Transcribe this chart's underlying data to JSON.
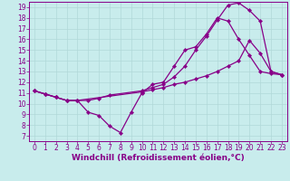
{
  "background_color": "#c8ecec",
  "grid_color": "#b0d8d8",
  "line_color": "#880088",
  "marker": "D",
  "marker_size": 2.2,
  "line_width": 0.9,
  "xlabel": "Windchill (Refroidissement éolien,°C)",
  "xlabel_fontsize": 6.5,
  "tick_fontsize": 5.5,
  "xlim": [
    -0.5,
    23.5
  ],
  "ylim": [
    6.5,
    19.5
  ],
  "yticks": [
    7,
    8,
    9,
    10,
    11,
    12,
    13,
    14,
    15,
    16,
    17,
    18,
    19
  ],
  "xticks": [
    0,
    1,
    2,
    3,
    4,
    5,
    6,
    7,
    8,
    9,
    10,
    11,
    12,
    13,
    14,
    15,
    16,
    17,
    18,
    19,
    20,
    21,
    22,
    23
  ],
  "series": [
    {
      "x": [
        0,
        1,
        2,
        3,
        4,
        5,
        6,
        7,
        8,
        9,
        10,
        11,
        12,
        13,
        14,
        15,
        16,
        17,
        18,
        19,
        20,
        21,
        22,
        23
      ],
      "y": [
        11.2,
        10.9,
        10.6,
        10.3,
        10.3,
        9.2,
        8.9,
        7.9,
        7.3,
        9.2,
        11.0,
        11.8,
        12.0,
        13.5,
        15.0,
        15.3,
        16.5,
        18.0,
        17.7,
        16.0,
        14.5,
        13.0,
        12.8,
        12.7
      ]
    },
    {
      "x": [
        0,
        1,
        2,
        3,
        4,
        5,
        6,
        7,
        10,
        11,
        12,
        13,
        14,
        15,
        16,
        17,
        18,
        19,
        20,
        21,
        22,
        23
      ],
      "y": [
        11.2,
        10.9,
        10.6,
        10.3,
        10.3,
        10.3,
        10.5,
        10.8,
        11.2,
        11.5,
        11.8,
        12.5,
        13.5,
        15.0,
        16.3,
        17.8,
        19.2,
        19.4,
        18.7,
        17.7,
        13.0,
        12.7
      ]
    },
    {
      "x": [
        0,
        1,
        2,
        3,
        4,
        10,
        11,
        12,
        13,
        14,
        15,
        16,
        17,
        18,
        19,
        20,
        21,
        22,
        23
      ],
      "y": [
        11.2,
        10.9,
        10.6,
        10.3,
        10.3,
        11.1,
        11.3,
        11.5,
        11.8,
        12.0,
        12.3,
        12.6,
        13.0,
        13.5,
        14.0,
        15.9,
        14.7,
        13.0,
        12.7
      ]
    }
  ]
}
